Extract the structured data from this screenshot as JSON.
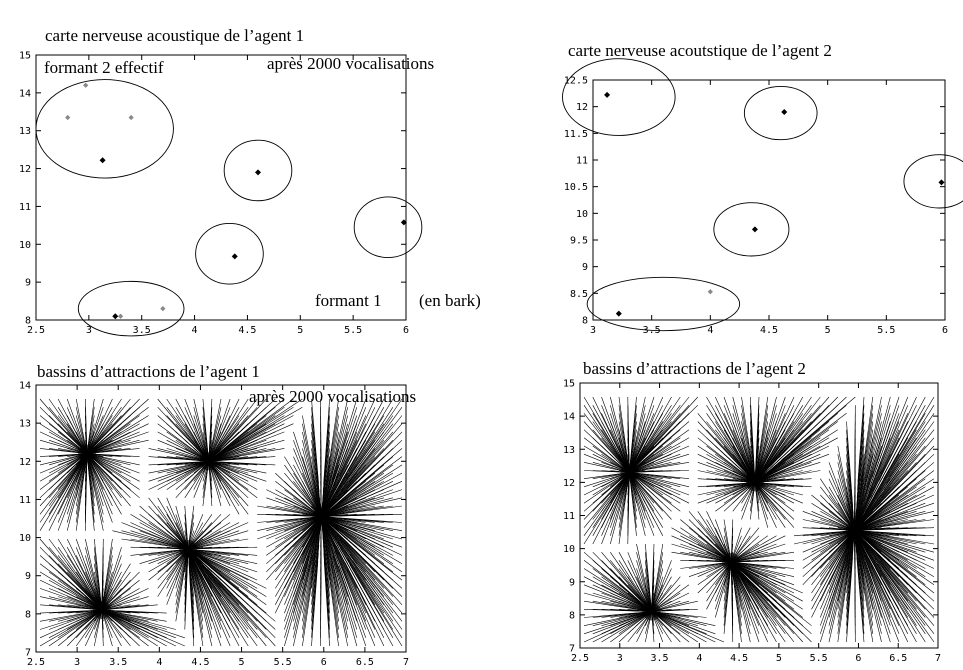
{
  "chart_data": [
    {
      "type": "scatter",
      "title": "carte nerveuse acoustique de l’agent 1",
      "ylabel": "formant 2 effectif",
      "annotation": "après 2000 vocalisations",
      "xlabel": "formant 1",
      "xlabel_unit": "(en bark)",
      "xlim": [
        2.5,
        6
      ],
      "ylim": [
        8,
        15
      ],
      "xticks": [
        "2.5",
        "3",
        "3.5",
        "4",
        "4.5",
        "5",
        "5.5",
        "6"
      ],
      "yticks": [
        "8",
        "9",
        "10",
        "11",
        "12",
        "13",
        "14",
        "15"
      ],
      "points": [
        {
          "x": 2.8,
          "y": 13.35,
          "kind": "gray"
        },
        {
          "x": 2.97,
          "y": 14.2,
          "kind": "gray"
        },
        {
          "x": 3.4,
          "y": 13.35,
          "kind": "gray"
        },
        {
          "x": 3.13,
          "y": 12.22,
          "kind": "black"
        },
        {
          "x": 4.6,
          "y": 11.9,
          "kind": "black"
        },
        {
          "x": 4.38,
          "y": 9.68,
          "kind": "black"
        },
        {
          "x": 5.98,
          "y": 10.58,
          "kind": "black"
        },
        {
          "x": 3.25,
          "y": 8.1,
          "kind": "black"
        },
        {
          "x": 3.3,
          "y": 8.1,
          "kind": "gray"
        },
        {
          "x": 3.7,
          "y": 8.3,
          "kind": "gray"
        }
      ],
      "clusters": [
        {
          "cx": 3.15,
          "cy": 13.05,
          "rx": 0.65,
          "ry": 1.3
        },
        {
          "cx": 4.6,
          "cy": 11.95,
          "rx": 0.32,
          "ry": 0.8
        },
        {
          "cx": 4.33,
          "cy": 9.75,
          "rx": 0.32,
          "ry": 0.8
        },
        {
          "cx": 5.83,
          "cy": 10.45,
          "rx": 0.32,
          "ry": 0.8
        },
        {
          "cx": 3.4,
          "cy": 8.3,
          "rx": 0.5,
          "ry": 0.72
        }
      ]
    },
    {
      "type": "scatter",
      "title": "carte nerveuse acoutstique de l’agent 2",
      "xlim": [
        3,
        6
      ],
      "ylim": [
        8,
        12.5
      ],
      "xticks": [
        "3",
        "3.5",
        "4",
        "4.5",
        "5",
        "5.5",
        "6"
      ],
      "yticks": [
        "8",
        "8.5",
        "9",
        "9.5",
        "10",
        "10.5",
        "11",
        "11.5",
        "12",
        "12.5"
      ],
      "points": [
        {
          "x": 3.12,
          "y": 12.22,
          "kind": "black"
        },
        {
          "x": 4.63,
          "y": 11.9,
          "kind": "black"
        },
        {
          "x": 4.38,
          "y": 9.7,
          "kind": "black"
        },
        {
          "x": 5.97,
          "y": 10.58,
          "kind": "black"
        },
        {
          "x": 3.22,
          "y": 8.12,
          "kind": "black"
        },
        {
          "x": 4.0,
          "y": 8.53,
          "kind": "gray"
        }
      ],
      "clusters": [
        {
          "cx": 3.22,
          "cy": 12.18,
          "rx": 0.48,
          "ry": 0.72
        },
        {
          "cx": 4.6,
          "cy": 11.88,
          "rx": 0.31,
          "ry": 0.5
        },
        {
          "cx": 4.35,
          "cy": 9.7,
          "rx": 0.32,
          "ry": 0.5
        },
        {
          "cx": 5.95,
          "cy": 10.6,
          "rx": 0.3,
          "ry": 0.5
        },
        {
          "cx": 3.6,
          "cy": 8.3,
          "rx": 0.65,
          "ry": 0.5
        }
      ]
    },
    {
      "type": "vector-field",
      "title": "bassins d’attractions de l’agent 1",
      "annotation": "après 2000 vocalisations",
      "xlim": [
        2.5,
        7
      ],
      "ylim": [
        7,
        14
      ],
      "xticks": [
        "2.5",
        "3",
        "3.5",
        "4",
        "4.5",
        "5",
        "5.5",
        "6",
        "6.5",
        "7"
      ],
      "yticks": [
        "7",
        "8",
        "9",
        "10",
        "11",
        "12",
        "13",
        "14"
      ],
      "attractors": [
        {
          "x": 3.12,
          "y": 12.2
        },
        {
          "x": 4.6,
          "y": 12.0
        },
        {
          "x": 4.35,
          "y": 9.7
        },
        {
          "x": 5.97,
          "y": 10.55
        },
        {
          "x": 3.3,
          "y": 8.1
        }
      ]
    },
    {
      "type": "vector-field",
      "title": "bassins d’attractions de l’agent 2",
      "xlim": [
        2.5,
        7
      ],
      "ylim": [
        7,
        15
      ],
      "xticks": [
        "2.5",
        "3",
        "3.5",
        "4",
        "4.5",
        "5",
        "5.5",
        "6",
        "6.5",
        "7"
      ],
      "yticks": [
        "7",
        "8",
        "9",
        "10",
        "11",
        "12",
        "13",
        "14",
        "15"
      ],
      "attractors": [
        {
          "x": 3.12,
          "y": 12.3
        },
        {
          "x": 4.7,
          "y": 12.0
        },
        {
          "x": 4.4,
          "y": 9.6
        },
        {
          "x": 5.95,
          "y": 10.55
        },
        {
          "x": 3.4,
          "y": 8.1
        }
      ]
    }
  ]
}
